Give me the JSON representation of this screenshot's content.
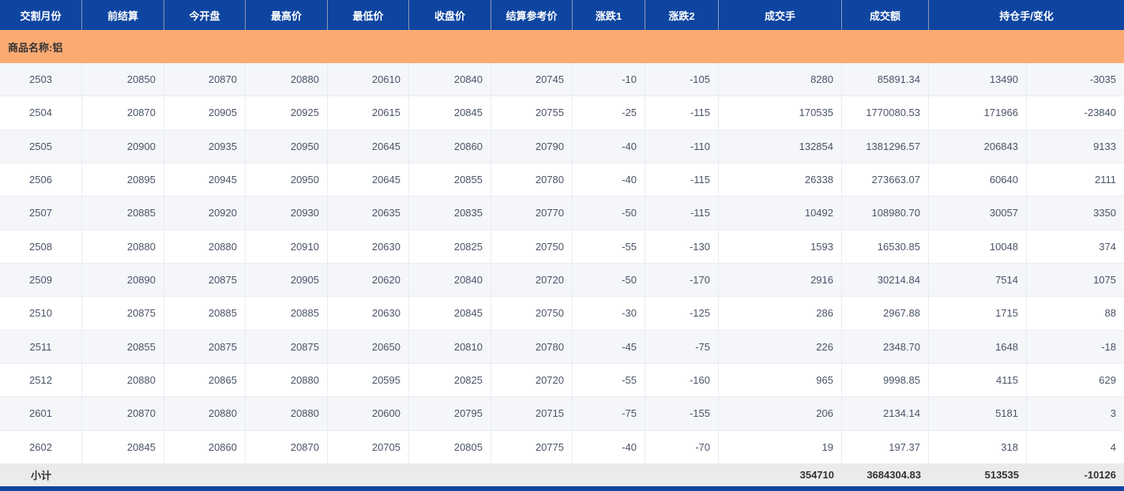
{
  "colors": {
    "header_bg": "#0e45a1",
    "header_text": "#ffffff",
    "group_bg": "#fbaa72",
    "group_text": "#333333",
    "stripe_bg": "#f4f6fa",
    "row_bg": "#ffffff",
    "subtotal_bg": "#ebebeb",
    "data_text": "#4a5466",
    "border": "#e9ecf1"
  },
  "table": {
    "headers": [
      "交割月份",
      "前结算",
      "今开盘",
      "最高价",
      "最低价",
      "收盘价",
      "结算参考价",
      "涨跌1",
      "涨跌2",
      "成交手",
      "成交额",
      "持仓手/变化"
    ],
    "group_label": "商品名称:铝",
    "rows": [
      [
        "2503",
        "20850",
        "20870",
        "20880",
        "20610",
        "20840",
        "20745",
        "-10",
        "-105",
        "8280",
        "85891.34",
        "13490",
        "-3035"
      ],
      [
        "2504",
        "20870",
        "20905",
        "20925",
        "20615",
        "20845",
        "20755",
        "-25",
        "-115",
        "170535",
        "1770080.53",
        "171966",
        "-23840"
      ],
      [
        "2505",
        "20900",
        "20935",
        "20950",
        "20645",
        "20860",
        "20790",
        "-40",
        "-110",
        "132854",
        "1381296.57",
        "206843",
        "9133"
      ],
      [
        "2506",
        "20895",
        "20945",
        "20950",
        "20645",
        "20855",
        "20780",
        "-40",
        "-115",
        "26338",
        "273663.07",
        "60640",
        "2111"
      ],
      [
        "2507",
        "20885",
        "20920",
        "20930",
        "20635",
        "20835",
        "20770",
        "-50",
        "-115",
        "10492",
        "108980.70",
        "30057",
        "3350"
      ],
      [
        "2508",
        "20880",
        "20880",
        "20910",
        "20630",
        "20825",
        "20750",
        "-55",
        "-130",
        "1593",
        "16530.85",
        "10048",
        "374"
      ],
      [
        "2509",
        "20890",
        "20875",
        "20905",
        "20620",
        "20840",
        "20720",
        "-50",
        "-170",
        "2916",
        "30214.84",
        "7514",
        "1075"
      ],
      [
        "2510",
        "20875",
        "20885",
        "20885",
        "20630",
        "20845",
        "20750",
        "-30",
        "-125",
        "286",
        "2967.88",
        "1715",
        "88"
      ],
      [
        "2511",
        "20855",
        "20875",
        "20875",
        "20650",
        "20810",
        "20780",
        "-45",
        "-75",
        "226",
        "2348.70",
        "1648",
        "-18"
      ],
      [
        "2512",
        "20880",
        "20865",
        "20880",
        "20595",
        "20825",
        "20720",
        "-55",
        "-160",
        "965",
        "9998.85",
        "4115",
        "629"
      ],
      [
        "2601",
        "20870",
        "20880",
        "20880",
        "20600",
        "20795",
        "20715",
        "-75",
        "-155",
        "206",
        "2134.14",
        "5181",
        "3"
      ],
      [
        "2602",
        "20845",
        "20860",
        "20870",
        "20705",
        "20805",
        "20775",
        "-40",
        "-70",
        "19",
        "197.37",
        "318",
        "4"
      ]
    ],
    "subtotal_row": [
      "小计",
      "",
      "",
      "",
      "",
      "",
      "",
      "",
      "",
      "354710",
      "3684304.83",
      "513535",
      "-10126"
    ]
  }
}
